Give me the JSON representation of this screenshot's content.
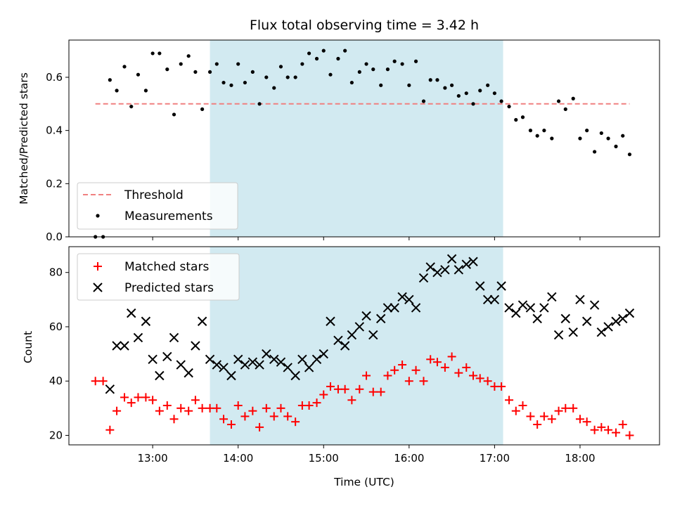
{
  "chart_data": {
    "title": "Flux total observing time = 3.42 h",
    "xlabel": "Time (UTC)",
    "x_ticks": [
      "13:00",
      "14:00",
      "15:00",
      "16:00",
      "17:00",
      "18:00"
    ],
    "x_tick_hours": [
      13,
      14,
      15,
      16,
      17,
      18
    ],
    "xlim_hours": [
      12.02,
      18.93
    ],
    "shaded_span_hours": [
      13.67,
      17.1
    ],
    "colors": {
      "shade": "#add8e6",
      "threshold": "#f08080",
      "measurements": "#000000",
      "matched": "#ff0000",
      "predicted": "#000000"
    },
    "top": {
      "type": "scatter",
      "ylabel": "Matched/Predicted stars",
      "ylim": [
        0,
        0.74
      ],
      "y_ticks": [
        0.0,
        0.2,
        0.4,
        0.6
      ],
      "y_tick_labels": [
        "0.0",
        "0.2",
        "0.4",
        "0.6"
      ],
      "threshold": {
        "label": "Threshold",
        "value": 0.5,
        "x_range_hours": [
          12.33,
          18.58
        ]
      },
      "measurements_label": "Measurements",
      "legend_position": "lower-left",
      "points": [
        [
          12.33,
          0.0
        ],
        [
          12.42,
          0.0
        ],
        [
          12.5,
          0.59
        ],
        [
          12.58,
          0.55
        ],
        [
          12.67,
          0.64
        ],
        [
          12.75,
          0.49
        ],
        [
          12.83,
          0.61
        ],
        [
          12.92,
          0.55
        ],
        [
          13.0,
          0.69
        ],
        [
          13.08,
          0.69
        ],
        [
          13.17,
          0.63
        ],
        [
          13.25,
          0.46
        ],
        [
          13.33,
          0.65
        ],
        [
          13.42,
          0.68
        ],
        [
          13.5,
          0.62
        ],
        [
          13.58,
          0.48
        ],
        [
          13.67,
          0.62
        ],
        [
          13.75,
          0.65
        ],
        [
          13.83,
          0.58
        ],
        [
          13.92,
          0.57
        ],
        [
          14.0,
          0.65
        ],
        [
          14.08,
          0.58
        ],
        [
          14.17,
          0.62
        ],
        [
          14.25,
          0.5
        ],
        [
          14.33,
          0.6
        ],
        [
          14.42,
          0.56
        ],
        [
          14.5,
          0.64
        ],
        [
          14.58,
          0.6
        ],
        [
          14.67,
          0.6
        ],
        [
          14.75,
          0.65
        ],
        [
          14.83,
          0.69
        ],
        [
          14.92,
          0.67
        ],
        [
          15.0,
          0.7
        ],
        [
          15.08,
          0.61
        ],
        [
          15.17,
          0.67
        ],
        [
          15.25,
          0.7
        ],
        [
          15.33,
          0.58
        ],
        [
          15.42,
          0.62
        ],
        [
          15.5,
          0.65
        ],
        [
          15.58,
          0.63
        ],
        [
          15.67,
          0.57
        ],
        [
          15.75,
          0.63
        ],
        [
          15.83,
          0.66
        ],
        [
          15.92,
          0.65
        ],
        [
          16.0,
          0.57
        ],
        [
          16.08,
          0.66
        ],
        [
          16.17,
          0.51
        ],
        [
          16.25,
          0.59
        ],
        [
          16.33,
          0.59
        ],
        [
          16.42,
          0.56
        ],
        [
          16.5,
          0.57
        ],
        [
          16.58,
          0.53
        ],
        [
          16.67,
          0.54
        ],
        [
          16.75,
          0.5
        ],
        [
          16.83,
          0.55
        ],
        [
          16.92,
          0.57
        ],
        [
          17.0,
          0.54
        ],
        [
          17.08,
          0.51
        ],
        [
          17.17,
          0.49
        ],
        [
          17.25,
          0.44
        ],
        [
          17.33,
          0.45
        ],
        [
          17.42,
          0.4
        ],
        [
          17.5,
          0.38
        ],
        [
          17.58,
          0.4
        ],
        [
          17.67,
          0.37
        ],
        [
          17.75,
          0.51
        ],
        [
          17.83,
          0.48
        ],
        [
          17.92,
          0.52
        ],
        [
          18.0,
          0.37
        ],
        [
          18.08,
          0.4
        ],
        [
          18.17,
          0.32
        ],
        [
          18.25,
          0.39
        ],
        [
          18.33,
          0.37
        ],
        [
          18.42,
          0.34
        ],
        [
          18.5,
          0.38
        ],
        [
          18.58,
          0.31
        ]
      ]
    },
    "bottom": {
      "type": "scatter",
      "ylabel": "Count",
      "ylim": [
        16.5,
        89.5
      ],
      "y_ticks": [
        20,
        40,
        60,
        80
      ],
      "y_tick_labels": [
        "20",
        "40",
        "60",
        "80"
      ],
      "legend_position": "upper-left",
      "series": [
        {
          "name": "Matched stars",
          "marker": "plus",
          "x": [
            12.33,
            12.42,
            12.5,
            12.58,
            12.67,
            12.75,
            12.83,
            12.92,
            13.0,
            13.08,
            13.17,
            13.25,
            13.33,
            13.42,
            13.5,
            13.58,
            13.67,
            13.75,
            13.83,
            13.92,
            14.0,
            14.08,
            14.17,
            14.25,
            14.33,
            14.42,
            14.5,
            14.58,
            14.67,
            14.75,
            14.83,
            14.92,
            15.0,
            15.08,
            15.17,
            15.25,
            15.33,
            15.42,
            15.5,
            15.58,
            15.67,
            15.75,
            15.83,
            15.92,
            16.0,
            16.08,
            16.17,
            16.25,
            16.33,
            16.42,
            16.5,
            16.58,
            16.67,
            16.75,
            16.83,
            16.92,
            17.0,
            17.08,
            17.17,
            17.25,
            17.33,
            17.42,
            17.5,
            17.58,
            17.67,
            17.75,
            17.83,
            17.92,
            18.0,
            18.08,
            18.17,
            18.25,
            18.33,
            18.42,
            18.5,
            18.58
          ],
          "values": [
            40,
            40,
            22,
            29,
            34,
            32,
            34,
            34,
            33,
            29,
            31,
            26,
            30,
            29,
            33,
            30,
            30,
            30,
            26,
            24,
            31,
            27,
            29,
            23,
            30,
            27,
            30,
            27,
            25,
            31,
            31,
            32,
            35,
            38,
            37,
            37,
            33,
            37,
            42,
            36,
            36,
            42,
            44,
            46,
            40,
            44,
            40,
            48,
            47,
            45,
            49,
            43,
            45,
            42,
            41,
            40,
            38,
            38,
            33,
            29,
            31,
            27,
            24,
            27,
            26,
            29,
            30,
            30,
            26,
            25,
            22,
            23,
            22,
            21,
            24,
            20
          ]
        },
        {
          "name": "Predicted stars",
          "marker": "x",
          "x": [
            12.5,
            12.58,
            12.67,
            12.75,
            12.83,
            12.92,
            13.0,
            13.08,
            13.17,
            13.25,
            13.33,
            13.42,
            13.5,
            13.58,
            13.67,
            13.75,
            13.83,
            13.92,
            14.0,
            14.08,
            14.17,
            14.25,
            14.33,
            14.42,
            14.5,
            14.58,
            14.67,
            14.75,
            14.83,
            14.92,
            15.0,
            15.08,
            15.17,
            15.25,
            15.33,
            15.42,
            15.5,
            15.58,
            15.67,
            15.75,
            15.83,
            15.92,
            16.0,
            16.08,
            16.17,
            16.25,
            16.33,
            16.42,
            16.5,
            16.58,
            16.67,
            16.75,
            16.83,
            16.92,
            17.0,
            17.08,
            17.17,
            17.25,
            17.33,
            17.42,
            17.5,
            17.58,
            17.67,
            17.75,
            17.83,
            17.92,
            18.0,
            18.08,
            18.17,
            18.25,
            18.33,
            18.42,
            18.5,
            18.58
          ],
          "values": [
            37,
            53,
            53,
            65,
            56,
            62,
            48,
            42,
            49,
            56,
            46,
            43,
            53,
            62,
            48,
            46,
            45,
            42,
            48,
            46,
            47,
            46,
            50,
            48,
            47,
            45,
            42,
            48,
            45,
            48,
            50,
            62,
            55,
            53,
            57,
            60,
            64,
            57,
            63,
            67,
            67,
            71,
            70,
            67,
            78,
            82,
            80,
            81,
            85,
            81,
            83,
            84,
            75,
            70,
            70,
            75,
            67,
            65,
            68,
            67,
            63,
            67,
            71,
            57,
            63,
            58,
            70,
            62,
            68,
            58,
            60,
            62,
            63,
            65
          ]
        }
      ]
    }
  }
}
